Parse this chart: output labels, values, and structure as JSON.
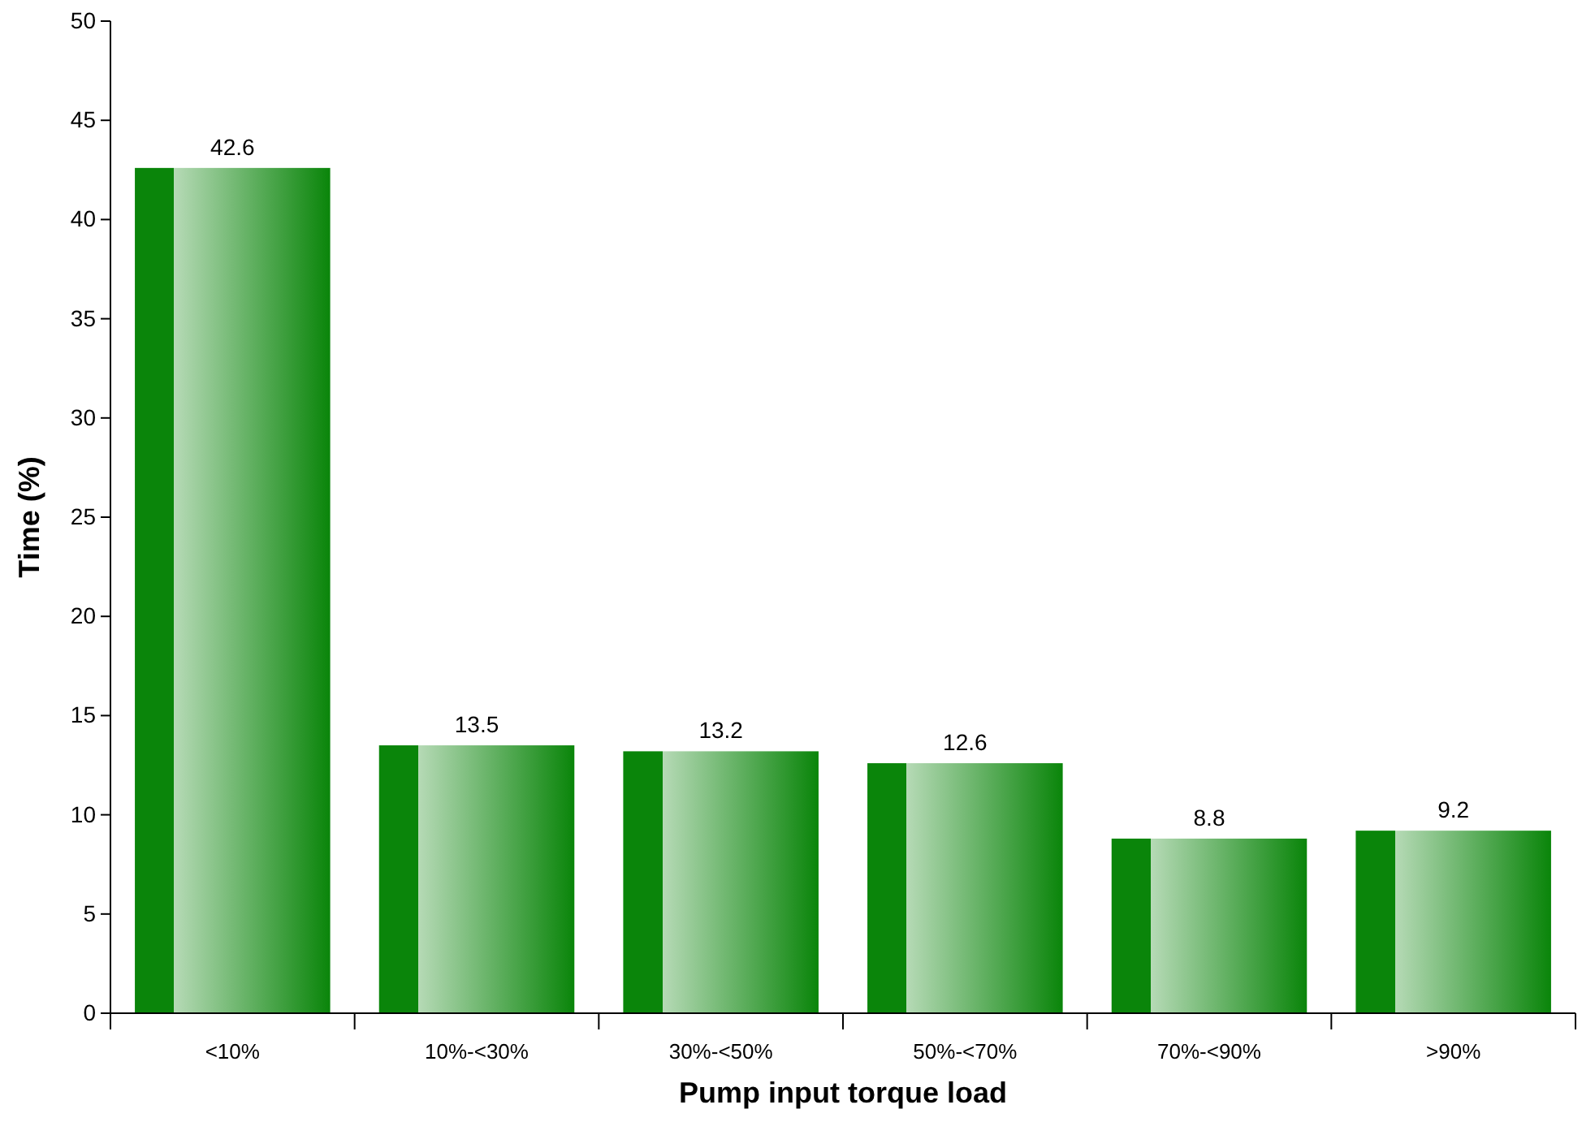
{
  "chart_data": {
    "type": "bar",
    "xlabel": "Pump input torque load",
    "ylabel": "Time (%)",
    "categories": [
      "<10%",
      "10%-<30%",
      "30%-<50%",
      "50%-<70%",
      "70%-<90%",
      ">90%"
    ],
    "values": [
      42.6,
      13.5,
      13.2,
      12.6,
      8.8,
      9.2
    ],
    "color": "#0a850a",
    "ylim": [
      0,
      50
    ],
    "yticks": [
      0,
      5,
      10,
      15,
      20,
      25,
      30,
      35,
      40,
      45,
      50
    ],
    "data_labels": true,
    "grid": false
  }
}
